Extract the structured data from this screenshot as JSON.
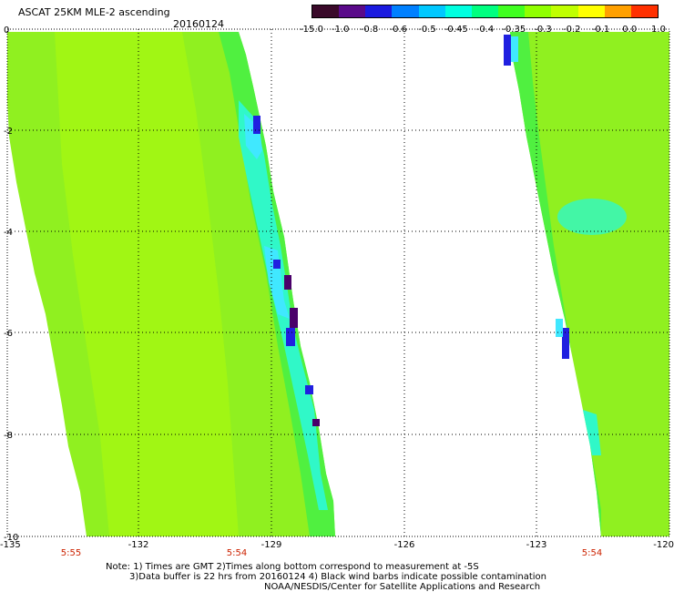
{
  "header": {
    "title": "ASCAT 25KM MLE-2 ascending",
    "date": "20160124"
  },
  "colorbar": {
    "labels": [
      "-15.0",
      "-1.0",
      "-0.8",
      "-0.6",
      "-0.5",
      "-0.45",
      "-0.4",
      "-0.35",
      "-0.3",
      "-0.2",
      "-0.1",
      "0.0",
      "1.0"
    ],
    "colors": [
      "#3a0a2a",
      "#5a0a8a",
      "#1a1ae0",
      "#0080ff",
      "#00c8ff",
      "#00ffe0",
      "#00ff80",
      "#40ff20",
      "#90ff00",
      "#c0ff00",
      "#ffff00",
      "#ffa000",
      "#ff3000"
    ]
  },
  "map": {
    "lat_ticks": [
      "0",
      "-2",
      "-4",
      "-6",
      "-8",
      "-10"
    ],
    "lon_ticks": [
      "-135",
      "-132",
      "-129",
      "-126",
      "-123",
      "-120"
    ],
    "time_labels": [
      "5:55",
      "5:54",
      "5:54"
    ],
    "grid": true,
    "swath_colors": {
      "main": "#90f020",
      "light": "#a8f810",
      "mid": "#50f040",
      "cyan": "#30f8c8",
      "aqua": "#40e8ff",
      "blue": "#2020e0",
      "purple": "#4a006a"
    }
  },
  "notes": {
    "line1": "Note: 1) Times are GMT 2)Times along bottom correspond to measurement at -5S",
    "line2": "3)Data buffer is 22 hrs from 20160124 4) Black wind barbs indicate possible contamination",
    "line3": "NOAA/NESDIS/Center for Satellite Applications and Research"
  }
}
